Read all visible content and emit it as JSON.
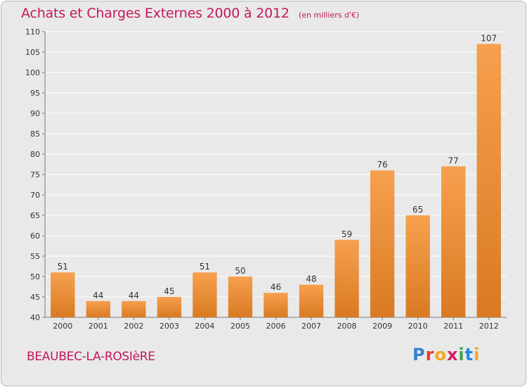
{
  "header": {
    "title": "Achats et Charges Externes 2000 à 2012",
    "subtitle": "(en milliers d'€)"
  },
  "footer": {
    "town": "BEAUBEC-LA-ROSIèRE",
    "brand": "Proxiti"
  },
  "colors": {
    "bar_light": "#f7a04f",
    "bar_dark": "#d97a22",
    "title": "#c2185b",
    "grid": "#ffffff",
    "plot_background": "#e9e9e9",
    "brand_letters": [
      "#3b7fd0",
      "#e53935",
      "#f5a623",
      "#d81b60",
      "#43a047",
      "#1e88e5",
      "#f5a623"
    ]
  },
  "chart_data": {
    "type": "bar",
    "title": "Achats et Charges Externes 2000 à 2012",
    "subtitle": "(en milliers d'€)",
    "xlabel": "",
    "ylabel": "",
    "categories": [
      "2000",
      "2001",
      "2002",
      "2003",
      "2004",
      "2005",
      "2006",
      "2007",
      "2008",
      "2009",
      "2010",
      "2011",
      "2012"
    ],
    "values": [
      51,
      44,
      44,
      45,
      51,
      50,
      46,
      48,
      59,
      76,
      65,
      77,
      107
    ],
    "ylim": [
      40,
      110
    ],
    "yticks": [
      40,
      45,
      50,
      55,
      60,
      65,
      70,
      75,
      80,
      85,
      90,
      95,
      100,
      105,
      110
    ],
    "grid": true,
    "data_labels": true
  }
}
